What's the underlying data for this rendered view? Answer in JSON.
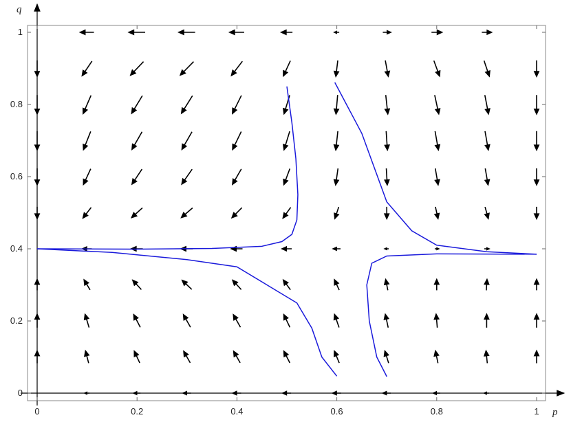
{
  "chart_data": {
    "type": "vector_field",
    "x_label": "p",
    "y_label": "q",
    "xlim": [
      0,
      1
    ],
    "ylim": [
      0,
      1
    ],
    "xticks": [
      0,
      0.2,
      0.4,
      0.6,
      0.8,
      1
    ],
    "yticks": [
      0,
      0.2,
      0.4,
      0.6,
      0.8,
      1
    ],
    "arrow_color": "#000000",
    "x": [
      0,
      0.1,
      0.2,
      0.3,
      0.4,
      0.5,
      0.6,
      0.7,
      0.8,
      0.9,
      1
    ],
    "y": [
      0,
      0.1,
      0.2,
      0.3,
      0.4,
      0.5,
      0.6,
      0.7,
      0.8,
      0.9,
      1
    ],
    "u": [
      [
        0,
        -0.003,
        -0.006,
        -0.008,
        -0.009,
        -0.009,
        -0.009,
        -0.008,
        -0.006,
        -0.003,
        0
      ],
      [
        0,
        -0.005,
        -0.009,
        -0.011,
        -0.011,
        -0.01,
        -0.008,
        -0.006,
        -0.004,
        -0.002,
        0
      ],
      [
        0,
        -0.007,
        -0.012,
        -0.013,
        -0.013,
        -0.011,
        -0.008,
        -0.005,
        -0.002,
        0,
        0
      ],
      [
        0,
        -0.009,
        -0.014,
        -0.016,
        -0.014,
        -0.011,
        -0.007,
        -0.003,
        0,
        0.001,
        0
      ],
      [
        0,
        -0.011,
        -0.017,
        -0.018,
        -0.016,
        -0.012,
        -0.007,
        -0.002,
        0.002,
        0.003,
        0
      ],
      [
        0,
        -0.014,
        -0.02,
        -0.021,
        -0.018,
        -0.013,
        -0.006,
        0,
        0.004,
        0.005,
        0
      ],
      [
        0,
        -0.016,
        -0.023,
        -0.024,
        -0.02,
        -0.013,
        -0.005,
        0.002,
        0.006,
        0.006,
        0
      ],
      [
        0,
        -0.018,
        -0.026,
        -0.026,
        -0.022,
        -0.014,
        -0.005,
        0.003,
        0.008,
        0.008,
        0
      ],
      [
        0,
        -0.02,
        -0.028,
        -0.029,
        -0.023,
        -0.014,
        -0.004,
        0.005,
        0.01,
        0.009,
        0
      ],
      [
        0,
        -0.022,
        -0.031,
        -0.032,
        -0.025,
        -0.015,
        -0.004,
        0.006,
        0.012,
        0.011,
        0
      ],
      [
        0,
        -0.024,
        -0.034,
        -0.034,
        -0.027,
        -0.016,
        -0.003,
        0.008,
        0.014,
        0.012,
        0
      ]
    ],
    "v": [
      [
        0,
        0,
        0,
        0,
        0,
        0,
        0,
        0,
        0,
        0,
        0
      ],
      [
        0.027,
        0.027,
        0.027,
        0.027,
        0.027,
        0.027,
        0.027,
        0.027,
        0.027,
        0.027,
        0.027
      ],
      [
        0.032,
        0.032,
        0.032,
        0.032,
        0.032,
        0.032,
        0.032,
        0.032,
        0.032,
        0.032,
        0.032
      ],
      [
        0.021,
        0.021,
        0.021,
        0.021,
        0.021,
        0.021,
        0.021,
        0.021,
        0.021,
        0.021,
        0.021
      ],
      [
        0,
        0,
        0,
        0,
        0,
        0,
        0,
        0,
        0,
        0,
        0
      ],
      [
        -0.025,
        -0.025,
        -0.025,
        -0.025,
        -0.025,
        -0.025,
        -0.025,
        -0.025,
        -0.025,
        -0.025,
        -0.025
      ],
      [
        -0.048,
        -0.048,
        -0.048,
        -0.048,
        -0.048,
        -0.048,
        -0.048,
        -0.048,
        -0.048,
        -0.048,
        -0.048
      ],
      [
        -0.063,
        -0.063,
        -0.063,
        -0.063,
        -0.063,
        -0.063,
        -0.063,
        -0.063,
        -0.063,
        -0.063,
        -0.063
      ],
      [
        -0.064,
        -0.064,
        -0.064,
        -0.064,
        -0.064,
        -0.064,
        -0.064,
        -0.064,
        -0.064,
        -0.064,
        -0.064
      ],
      [
        -0.045,
        -0.045,
        -0.045,
        -0.045,
        -0.045,
        -0.045,
        -0.045,
        -0.045,
        -0.045,
        -0.045,
        -0.045
      ],
      [
        0,
        0,
        0,
        0,
        0,
        0,
        0,
        0,
        0,
        0,
        0
      ]
    ],
    "curves": [
      {
        "color": "#1a1adb",
        "x": [
          0.5,
          0.51,
          0.518,
          0.522,
          0.52,
          0.51,
          0.49,
          0.45,
          0.35,
          0.2,
          0
        ],
        "y": [
          0.85,
          0.75,
          0.65,
          0.55,
          0.48,
          0.44,
          0.42,
          0.407,
          0.401,
          0.399,
          0.4
        ]
      },
      {
        "color": "#1a1adb",
        "x": [
          0,
          0.15,
          0.3,
          0.4,
          0.46,
          0.52,
          0.55,
          0.57,
          0.6
        ],
        "y": [
          0.4,
          0.39,
          0.37,
          0.35,
          0.3,
          0.25,
          0.18,
          0.1,
          0.047
        ]
      },
      {
        "color": "#1a1adb",
        "x": [
          0.7,
          0.68,
          0.665,
          0.66,
          0.67,
          0.7,
          0.8,
          1
        ],
        "y": [
          0.046,
          0.1,
          0.2,
          0.3,
          0.36,
          0.38,
          0.386,
          0.385
        ]
      },
      {
        "color": "#1a1adb",
        "x": [
          0.596,
          0.65,
          0.7,
          0.75,
          0.8,
          0.9,
          1
        ],
        "y": [
          0.861,
          0.72,
          0.53,
          0.45,
          0.41,
          0.392,
          0.385
        ]
      }
    ]
  }
}
